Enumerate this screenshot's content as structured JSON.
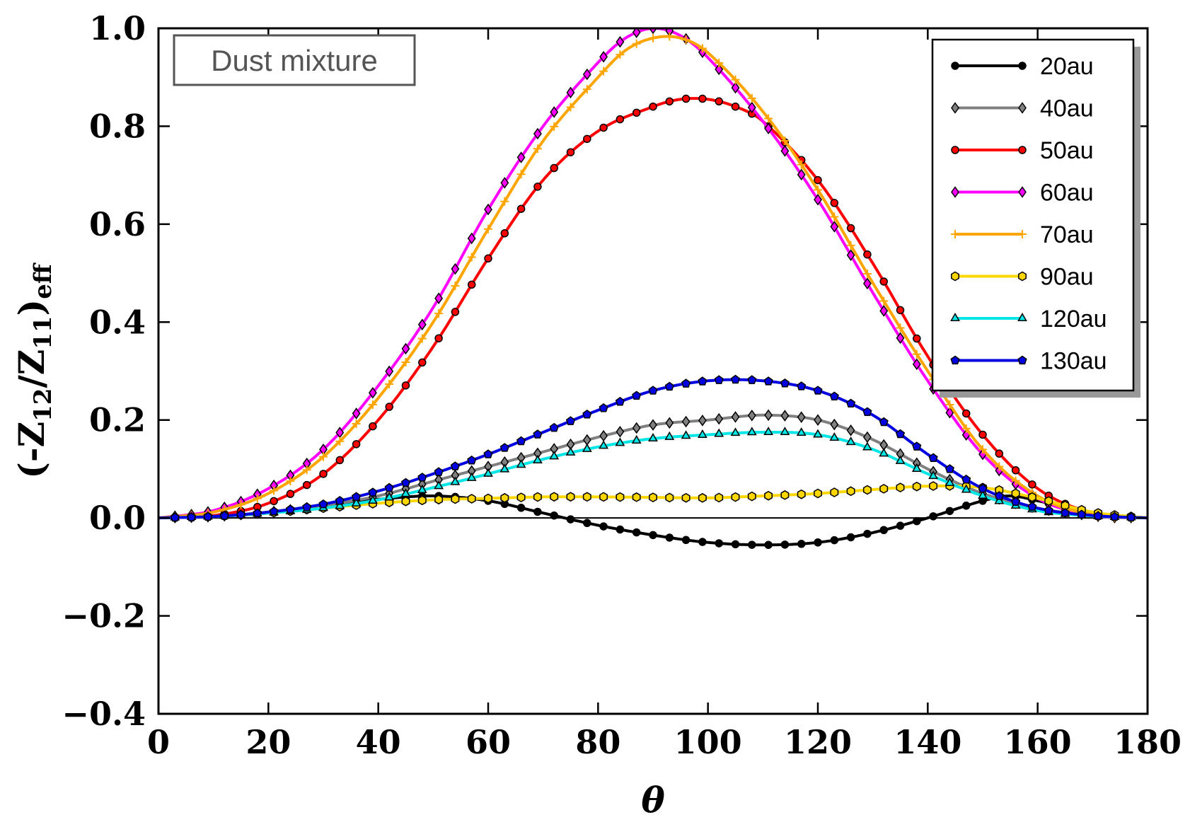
{
  "chart_data": {
    "type": "line",
    "title": "",
    "annotation": "Dust mixture",
    "xlabel": "θ",
    "ylabel": "(-Z12/Z11)eff",
    "ylabel_parts": {
      "open": "(-Z",
      "sub1": "12",
      "slash": "/Z",
      "sub2": "11",
      "close": ")",
      "sub3": "eff"
    },
    "xlim": [
      0,
      180
    ],
    "ylim": [
      -0.4,
      1.0
    ],
    "xticks": [
      0,
      20,
      40,
      60,
      80,
      100,
      120,
      140,
      160,
      180
    ],
    "yticks": [
      -0.4,
      -0.2,
      0.0,
      0.2,
      0.4,
      0.6,
      0.8,
      1.0
    ],
    "ytick_labels": [
      "−0.4",
      "−0.2",
      "0.0",
      "0.2",
      "0.4",
      "0.6",
      "0.8",
      "1.0"
    ],
    "legend_position": "top-right",
    "series": [
      {
        "name": "20au",
        "color": "#000000",
        "marker": "circle",
        "x": [
          0,
          10,
          20,
          30,
          40,
          50,
          60,
          70,
          80,
          90,
          100,
          110,
          120,
          130,
          140,
          150,
          155,
          160,
          170,
          180
        ],
        "values": [
          0,
          0.003,
          0.01,
          0.025,
          0.038,
          0.045,
          0.035,
          0.01,
          -0.015,
          -0.035,
          -0.05,
          -0.055,
          -0.05,
          -0.03,
          0.0,
          0.035,
          0.045,
          0.035,
          0.01,
          0
        ]
      },
      {
        "name": "40au",
        "color": "#808080",
        "marker": "diamond",
        "x": [
          0,
          10,
          20,
          30,
          40,
          50,
          60,
          70,
          80,
          90,
          100,
          110,
          120,
          130,
          140,
          150,
          160,
          170,
          180
        ],
        "values": [
          0,
          0.003,
          0.012,
          0.025,
          0.045,
          0.075,
          0.105,
          0.135,
          0.165,
          0.19,
          0.2,
          0.21,
          0.2,
          0.16,
          0.1,
          0.05,
          0.02,
          0.005,
          0
        ]
      },
      {
        "name": "50au",
        "color": "#ff0000",
        "marker": "circle",
        "x": [
          0,
          10,
          20,
          30,
          40,
          50,
          60,
          70,
          80,
          90,
          95,
          100,
          105,
          110,
          120,
          130,
          140,
          150,
          160,
          170,
          180
        ],
        "values": [
          0,
          0.005,
          0.03,
          0.09,
          0.2,
          0.35,
          0.53,
          0.69,
          0.79,
          0.84,
          0.855,
          0.855,
          0.84,
          0.81,
          0.69,
          0.52,
          0.33,
          0.17,
          0.06,
          0.01,
          0
        ]
      },
      {
        "name": "60au",
        "color": "#ff00ff",
        "marker": "diamond",
        "x": [
          0,
          10,
          20,
          30,
          40,
          50,
          60,
          70,
          80,
          85,
          90,
          95,
          100,
          110,
          120,
          130,
          140,
          150,
          160,
          170,
          180
        ],
        "values": [
          0,
          0.015,
          0.06,
          0.14,
          0.27,
          0.43,
          0.63,
          0.8,
          0.93,
          0.98,
          1.0,
          0.985,
          0.94,
          0.81,
          0.65,
          0.46,
          0.28,
          0.13,
          0.04,
          0.005,
          0
        ]
      },
      {
        "name": "70au",
        "color": "#ffa500",
        "marker": "plus",
        "x": [
          0,
          10,
          20,
          30,
          40,
          50,
          60,
          70,
          80,
          85,
          90,
          95,
          100,
          110,
          120,
          130,
          140,
          150,
          160,
          170,
          180
        ],
        "values": [
          0,
          0.012,
          0.05,
          0.125,
          0.245,
          0.4,
          0.59,
          0.77,
          0.9,
          0.955,
          0.98,
          0.98,
          0.95,
          0.83,
          0.67,
          0.48,
          0.3,
          0.14,
          0.045,
          0.006,
          0
        ]
      },
      {
        "name": "90au",
        "color": "#ffd700",
        "marker": "hexagon",
        "x": [
          0,
          10,
          20,
          30,
          40,
          50,
          60,
          70,
          80,
          90,
          100,
          110,
          120,
          130,
          140,
          150,
          160,
          170,
          180
        ],
        "values": [
          0,
          0.003,
          0.01,
          0.02,
          0.03,
          0.037,
          0.04,
          0.043,
          0.043,
          0.042,
          0.041,
          0.045,
          0.05,
          0.058,
          0.065,
          0.062,
          0.04,
          0.012,
          0
        ]
      },
      {
        "name": "120au",
        "color": "#00e5e5",
        "marker": "triangle",
        "x": [
          0,
          10,
          20,
          30,
          40,
          50,
          60,
          70,
          80,
          90,
          100,
          110,
          120,
          130,
          140,
          150,
          160,
          170,
          180
        ],
        "values": [
          0,
          0.003,
          0.01,
          0.02,
          0.037,
          0.062,
          0.09,
          0.12,
          0.145,
          0.162,
          0.17,
          0.175,
          0.17,
          0.14,
          0.09,
          0.045,
          0.015,
          0.004,
          0
        ]
      },
      {
        "name": "130au",
        "color": "#0000e0",
        "marker": "pentagon",
        "x": [
          0,
          10,
          20,
          30,
          40,
          50,
          60,
          70,
          80,
          90,
          100,
          110,
          120,
          130,
          140,
          150,
          160,
          170,
          180
        ],
        "values": [
          0,
          0.003,
          0.012,
          0.028,
          0.055,
          0.09,
          0.13,
          0.175,
          0.22,
          0.26,
          0.28,
          0.28,
          0.26,
          0.21,
          0.13,
          0.06,
          0.02,
          0.005,
          0
        ]
      }
    ]
  }
}
